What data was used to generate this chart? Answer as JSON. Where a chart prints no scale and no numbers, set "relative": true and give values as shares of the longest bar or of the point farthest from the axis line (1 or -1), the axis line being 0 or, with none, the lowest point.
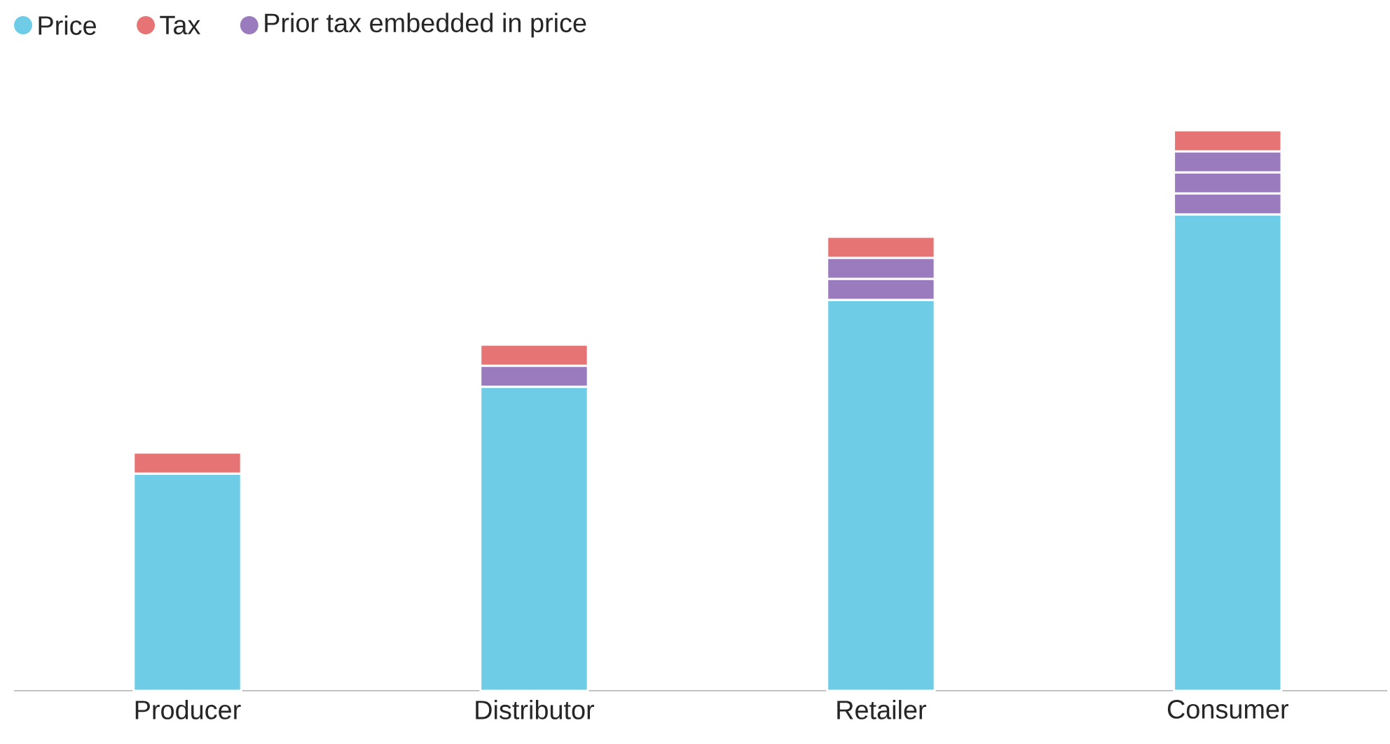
{
  "chart_data": {
    "type": "bar",
    "relative": true,
    "stacked": true,
    "legend": "top left",
    "categories": [
      "Producer",
      "Distributor",
      "Retailer",
      "Consumer"
    ],
    "series": [
      {
        "name": "Price",
        "color": "#6ecce6",
        "values": [
          0.3875,
          0.5425,
          0.6975,
          0.85
        ]
      },
      {
        "name": "Prior tax embedded in price",
        "color": "#9a7bbd",
        "values": [
          null,
          0.0375,
          0.0375,
          0.0375
        ]
      },
      {
        "color": "#9a7bbd",
        "values": [
          null,
          null,
          0.0375,
          0.0375
        ]
      },
      {
        "color": "#9a7bbd",
        "values": [
          null,
          null,
          null,
          0.0375
        ]
      },
      {
        "name": "Tax",
        "color": "#e67474",
        "values": [
          0.0375,
          0.0375,
          0.0375,
          0.0375
        ]
      }
    ]
  }
}
